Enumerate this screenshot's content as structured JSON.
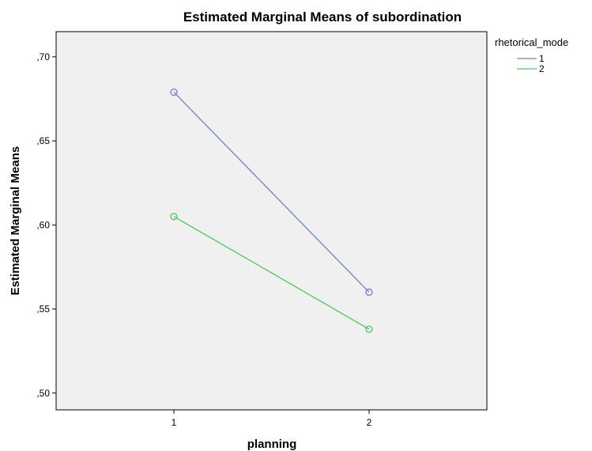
{
  "chart_data": {
    "type": "line",
    "title": "Estimated Marginal Means of subordination",
    "xlabel": "planning",
    "ylabel": "Estimated Marginal Means",
    "categories": [
      "1",
      "2"
    ],
    "ylim": [
      0.49,
      0.715
    ],
    "yticks": [
      0.5,
      0.55,
      0.6,
      0.65,
      0.7
    ],
    "ytick_labels": [
      ",50",
      ",55",
      ",60",
      ",65",
      ",70"
    ],
    "legend_title": "rhetorical_mode",
    "legend_position": "top-right, outside plot",
    "plot_background": "#f0f0f0",
    "grid": false,
    "marker": "open circle",
    "series": [
      {
        "name": "1",
        "color": "#6f7fc8",
        "values": [
          0.679,
          0.56
        ]
      },
      {
        "name": "2",
        "color": "#4cc95a",
        "values": [
          0.605,
          0.538
        ]
      }
    ]
  }
}
